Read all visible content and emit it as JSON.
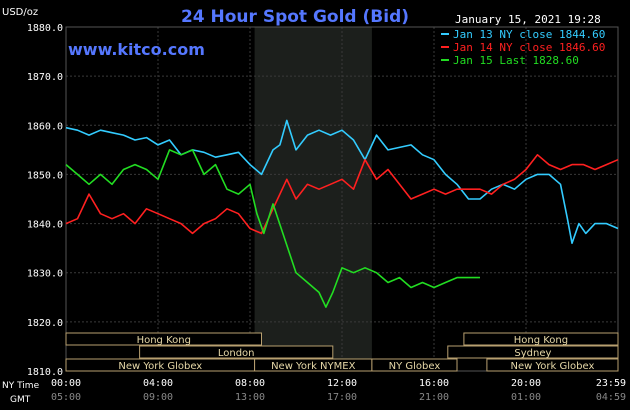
{
  "chart_data": {
    "type": "line",
    "title": "24 Hour Spot Gold (Bid)",
    "watermark": "www.kitco.com",
    "timestamp": "January 15, 2021 19:28",
    "ylabel": "USD/oz",
    "ylim": [
      1810,
      1880
    ],
    "xlim": [
      0,
      24
    ],
    "grid": true,
    "legend_position": "top-right",
    "y_ticks": [
      "1880.0",
      "1870.0",
      "1860.0",
      "1850.0",
      "1840.0",
      "1830.0",
      "1820.0",
      "1810.0"
    ],
    "x_ticks_ny": [
      "00:00",
      "04:00",
      "08:00",
      "12:00",
      "16:00",
      "20:00",
      "23:59"
    ],
    "x_ticks_gmt": [
      "05:00",
      "09:00",
      "13:00",
      "17:00",
      "21:00",
      "01:00",
      "04:59"
    ],
    "x_axis_row_labels": {
      "ny": "NY Time",
      "gmt": "GMT"
    },
    "shaded_region": [
      8.2,
      13.3
    ],
    "sessions": [
      {
        "name": "Hong Kong",
        "start": 0,
        "end": 8.5,
        "row": 0
      },
      {
        "name": "Hong Kong",
        "start": 17.3,
        "end": 24,
        "row": 0
      },
      {
        "name": "London",
        "start": 3.2,
        "end": 11.6,
        "row": 1
      },
      {
        "name": "Sydney",
        "start": 16.6,
        "end": 24,
        "row": 1
      },
      {
        "name": "New York Globex",
        "start": 0,
        "end": 8.2,
        "row": 2
      },
      {
        "name": "New York NYMEX",
        "start": 8.2,
        "end": 13.3,
        "row": 2
      },
      {
        "name": "NY Globex",
        "start": 13.3,
        "end": 17.0,
        "row": 2
      },
      {
        "name": "New York Globex",
        "start": 18.3,
        "end": 24,
        "row": 2
      }
    ],
    "series": [
      {
        "name": "Jan 13 NY close 1844.60",
        "color": "#33ccff",
        "x": [
          0,
          0.5,
          1,
          1.5,
          2,
          2.5,
          3,
          3.5,
          4,
          4.5,
          5,
          5.5,
          6,
          6.5,
          7,
          7.5,
          8,
          8.5,
          9,
          9.3,
          9.6,
          10,
          10.5,
          11,
          11.5,
          12,
          12.5,
          13,
          13.5,
          14,
          14.5,
          15,
          15.5,
          16,
          16.5,
          17,
          17.5,
          18,
          18.5,
          19,
          19.5,
          20,
          20.5,
          21,
          21.5,
          21.8,
          22,
          22.3,
          22.6,
          23,
          23.5,
          24
        ],
        "values": [
          1859.5,
          1859,
          1858,
          1859,
          1858.5,
          1858,
          1857,
          1857.5,
          1856,
          1857,
          1854,
          1855,
          1854.5,
          1853.5,
          1854,
          1854.5,
          1852,
          1850,
          1855,
          1856,
          1861,
          1855,
          1858,
          1859,
          1858,
          1859,
          1857,
          1853,
          1858,
          1855,
          1855.5,
          1856,
          1854,
          1853,
          1850,
          1848,
          1845,
          1845,
          1847,
          1848,
          1847,
          1849,
          1850,
          1850,
          1848,
          1841,
          1836,
          1840,
          1838,
          1840,
          1840,
          1839
        ]
      },
      {
        "name": "Jan 14 NY close 1846.60",
        "color": "#ff2020",
        "x": [
          0,
          0.5,
          1,
          1.5,
          2,
          2.5,
          3,
          3.5,
          4,
          4.5,
          5,
          5.5,
          6,
          6.5,
          7,
          7.5,
          8,
          8.5,
          9,
          9.3,
          9.6,
          10,
          10.5,
          11,
          11.5,
          12,
          12.5,
          13,
          13.5,
          14,
          14.5,
          15,
          15.5,
          16,
          16.5,
          17,
          17.5,
          18,
          18.5,
          19,
          19.5,
          20,
          20.5,
          21,
          21.5,
          22,
          22.5,
          23,
          23.5,
          24
        ],
        "values": [
          1840,
          1841,
          1846,
          1842,
          1841,
          1842,
          1840,
          1843,
          1842,
          1841,
          1840,
          1838,
          1840,
          1841,
          1843,
          1842,
          1839,
          1838,
          1843,
          1846,
          1849,
          1845,
          1848,
          1847,
          1848,
          1849,
          1847,
          1853,
          1849,
          1851,
          1848,
          1845,
          1846,
          1847,
          1846,
          1847,
          1847,
          1847,
          1846,
          1848,
          1849,
          1851,
          1854,
          1852,
          1851,
          1852,
          1852,
          1851,
          1852,
          1853
        ]
      },
      {
        "name": "Jan 15 Last 1828.60",
        "color": "#22dd22",
        "x": [
          0,
          0.5,
          1,
          1.5,
          2,
          2.5,
          3,
          3.5,
          4,
          4.5,
          5,
          5.5,
          6,
          6.5,
          7,
          7.5,
          8,
          8.3,
          8.6,
          9,
          9.5,
          10,
          10.5,
          11,
          11.3,
          11.6,
          12,
          12.5,
          13,
          13.5,
          14,
          14.5,
          15,
          15.5,
          16,
          16.5,
          17,
          17.5,
          18
        ],
        "values": [
          1852,
          1850,
          1848,
          1850,
          1848,
          1851,
          1852,
          1851,
          1849,
          1855,
          1854,
          1855,
          1850,
          1852,
          1847,
          1846,
          1848,
          1842,
          1838,
          1844,
          1837,
          1830,
          1828,
          1826,
          1823,
          1826,
          1831,
          1830,
          1831,
          1830,
          1828,
          1829,
          1827,
          1828,
          1827,
          1828,
          1829,
          1829,
          1829
        ]
      }
    ]
  }
}
